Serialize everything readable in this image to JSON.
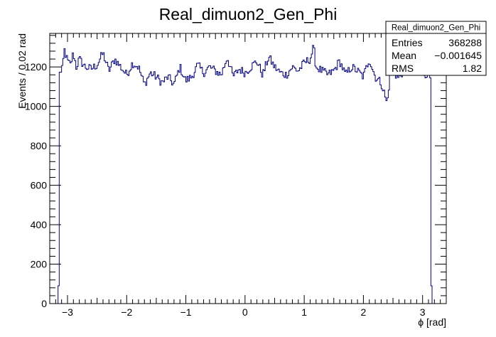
{
  "chart_data": {
    "type": "bar",
    "title": "Real_dimuon2_Gen_Phi",
    "xlabel": "ϕ [rad]",
    "ylabel": "Events / 0.02 rad",
    "xlim": [
      -3.3,
      3.4
    ],
    "ylim": [
      0,
      1370
    ],
    "xticks": [
      -3,
      -2,
      -1,
      0,
      1,
      2,
      3
    ],
    "xtick_labels": [
      "−3",
      "−2",
      "−1",
      "0",
      "1",
      "2",
      "3"
    ],
    "yticks": [
      0,
      200,
      400,
      600,
      800,
      1000,
      1200
    ],
    "ytick_labels": [
      "0",
      "200",
      "400",
      "600",
      "800",
      "1000",
      "1200"
    ],
    "bin_width": 0.02,
    "x_start": -3.16,
    "x_end": 3.16,
    "edge_bins": {
      "first": 90,
      "last": 90
    },
    "anchors": [
      [
        -3.14,
        1190
      ],
      [
        -3.1,
        1160
      ],
      [
        -3.05,
        1285
      ],
      [
        -3.0,
        1230
      ],
      [
        -2.95,
        1210
      ],
      [
        -2.9,
        1270
      ],
      [
        -2.85,
        1200
      ],
      [
        -2.8,
        1240
      ],
      [
        -2.7,
        1200
      ],
      [
        -2.6,
        1190
      ],
      [
        -2.5,
        1210
      ],
      [
        -2.4,
        1270
      ],
      [
        -2.3,
        1180
      ],
      [
        -2.2,
        1240
      ],
      [
        -2.1,
        1200
      ],
      [
        -2.0,
        1160
      ],
      [
        -1.9,
        1220
      ],
      [
        -1.8,
        1200
      ],
      [
        -1.7,
        1110
      ],
      [
        -1.6,
        1170
      ],
      [
        -1.5,
        1150
      ],
      [
        -1.4,
        1120
      ],
      [
        -1.3,
        1150
      ],
      [
        -1.2,
        1110
      ],
      [
        -1.1,
        1200
      ],
      [
        -1.0,
        1130
      ],
      [
        -0.9,
        1150
      ],
      [
        -0.8,
        1210
      ],
      [
        -0.7,
        1170
      ],
      [
        -0.6,
        1200
      ],
      [
        -0.5,
        1180
      ],
      [
        -0.4,
        1160
      ],
      [
        -0.3,
        1250
      ],
      [
        -0.2,
        1150
      ],
      [
        -0.1,
        1190
      ],
      [
        0.0,
        1170
      ],
      [
        0.1,
        1200
      ],
      [
        0.2,
        1230
      ],
      [
        0.3,
        1160
      ],
      [
        0.4,
        1250
      ],
      [
        0.5,
        1200
      ],
      [
        0.6,
        1170
      ],
      [
        0.7,
        1160
      ],
      [
        0.8,
        1200
      ],
      [
        0.9,
        1180
      ],
      [
        1.0,
        1220
      ],
      [
        1.1,
        1240
      ],
      [
        1.16,
        1300
      ],
      [
        1.2,
        1200
      ],
      [
        1.3,
        1180
      ],
      [
        1.4,
        1160
      ],
      [
        1.5,
        1180
      ],
      [
        1.6,
        1230
      ],
      [
        1.7,
        1160
      ],
      [
        1.8,
        1200
      ],
      [
        1.9,
        1180
      ],
      [
        2.0,
        1150
      ],
      [
        2.1,
        1240
      ],
      [
        2.2,
        1150
      ],
      [
        2.3,
        1120
      ],
      [
        2.36,
        1060
      ],
      [
        2.4,
        1010
      ],
      [
        2.45,
        1160
      ],
      [
        2.5,
        1180
      ],
      [
        2.6,
        1140
      ],
      [
        2.7,
        1200
      ],
      [
        2.8,
        1180
      ],
      [
        2.9,
        1200
      ],
      [
        3.0,
        1170
      ],
      [
        3.1,
        1160
      ],
      [
        3.14,
        1150
      ]
    ],
    "line_color": "#00007f",
    "grid": false,
    "legend": "none"
  },
  "stats_box": {
    "name": "Real_dimuon2_Gen_Phi",
    "rows": [
      {
        "label": "Entries",
        "value": "368288"
      },
      {
        "label": "Mean",
        "value": "−0.001645"
      },
      {
        "label": "RMS",
        "value": "1.82"
      }
    ]
  }
}
